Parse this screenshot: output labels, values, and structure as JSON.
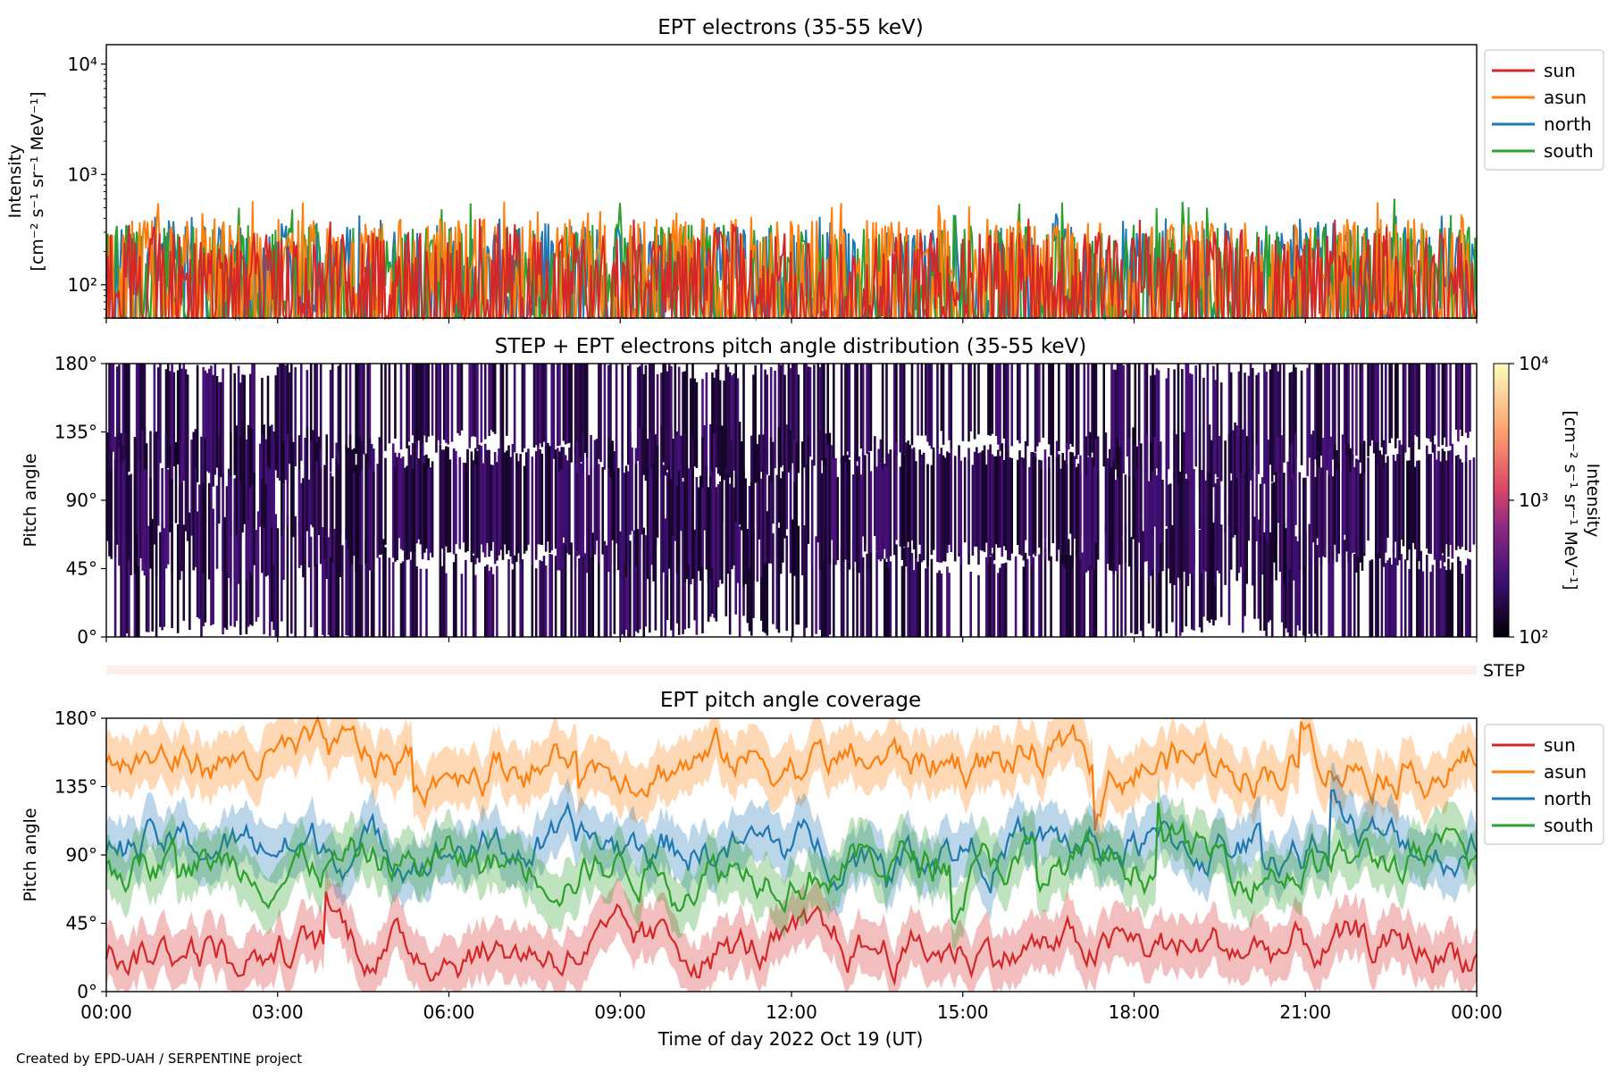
{
  "footer": "Created by EPD-UAH / SERPENTINE project",
  "colors": {
    "sun": "#d62728",
    "asun": "#ff7f0e",
    "north": "#1f77b4",
    "south": "#2ca02c"
  },
  "chart_data": [
    {
      "type": "line",
      "title": "EPT electrons (35-55 keV)",
      "ylabel": "Intensity",
      "yunit": "[cm⁻² s⁻¹ sr⁻¹ MeV⁻¹]",
      "yscale": "log",
      "ylim": [
        50,
        15000
      ],
      "yticks": [
        {
          "value": 100,
          "label": "10²"
        },
        {
          "value": 1000,
          "label": "10³"
        },
        {
          "value": 10000,
          "label": "10⁴"
        }
      ],
      "xlim": [
        "2022-10-19 00:00",
        "2022-10-20 00:00"
      ],
      "legend": "outside-right",
      "series": [
        {
          "name": "sun",
          "typical_range": [
            50,
            300
          ],
          "peak": 400
        },
        {
          "name": "asun",
          "typical_range": [
            50,
            400
          ],
          "peak": 600
        },
        {
          "name": "north",
          "typical_range": [
            50,
            350
          ],
          "peak": 450
        },
        {
          "name": "south",
          "typical_range": [
            50,
            350
          ],
          "peak": 650
        }
      ]
    },
    {
      "type": "heatmap",
      "title": "STEP + EPT electrons pitch angle distribution (35-55 keV)",
      "ylabel": "Pitch angle",
      "yticks": [
        "0°",
        "45°",
        "90°",
        "135°",
        "180°"
      ],
      "ylim": [
        0,
        180
      ],
      "colorbar": {
        "label": "Intensity",
        "unit": "[cm⁻² s⁻¹ sr⁻¹ MeV⁻¹]",
        "scale": "log",
        "range": [
          100,
          10000
        ],
        "ticks": [
          {
            "value": 100,
            "label": "10²"
          },
          {
            "value": 1000,
            "label": "10³"
          },
          {
            "value": 10000,
            "label": "10⁴"
          }
        ]
      },
      "step_strip_label": "STEP"
    },
    {
      "type": "line",
      "title": "EPT pitch angle coverage",
      "ylabel": "Pitch angle",
      "xlabel": "Time of day 2022 Oct 19 (UT)",
      "ylim": [
        0,
        180
      ],
      "yticks": [
        "0°",
        "45°",
        "90°",
        "135°",
        "180°"
      ],
      "xticks": [
        "00:00",
        "03:00",
        "06:00",
        "09:00",
        "12:00",
        "15:00",
        "18:00",
        "21:00",
        "00:00"
      ],
      "legend": "outside-right",
      "series": [
        {
          "name": "sun",
          "mean_pitch_angle": 28,
          "range": [
            0,
            80
          ]
        },
        {
          "name": "asun",
          "mean_pitch_angle": 152,
          "range": [
            100,
            180
          ]
        },
        {
          "name": "north",
          "mean_pitch_angle": 95,
          "range": [
            60,
            135
          ]
        },
        {
          "name": "south",
          "mean_pitch_angle": 85,
          "range": [
            45,
            125
          ]
        }
      ]
    }
  ]
}
